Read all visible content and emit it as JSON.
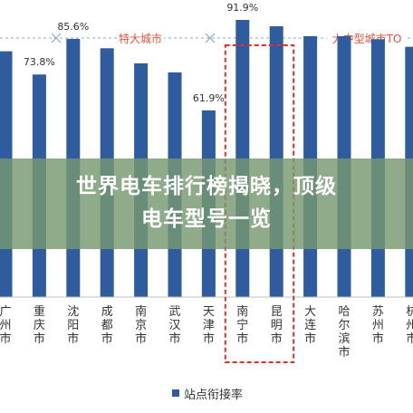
{
  "colors": {
    "bar": "#2E5C9E",
    "region_label": "#E8503A",
    "divider": "#8FA8C8",
    "highlight_box": "#E0302A",
    "banner_text": "#FFFFFF"
  },
  "headline": {
    "line1": "世界电车排行榜揭晓，顶级",
    "line2": "电车型号一览"
  },
  "chart_data": {
    "type": "bar",
    "regions": [
      {
        "label": "市"
      },
      {
        "label": "特大城市"
      },
      {
        "label": "大中型城市TO"
      }
    ],
    "categories": [
      "广州市",
      "重庆市",
      "沈阳市",
      "成都市",
      "南京市",
      "武汉市",
      "天津市",
      "南宁市",
      "昆明市",
      "大连市",
      "哈尔滨市",
      "苏州市",
      "杭州市"
    ],
    "series": [
      {
        "name": "站点衔接率",
        "values": [
          81.5,
          73.8,
          85.6,
          82.5,
          77.5,
          74.5,
          61.9,
          91.9,
          89.8,
          86.5,
          86.5,
          85.5,
          83.0
        ]
      }
    ],
    "data_labels": [
      {
        "category": "重庆市",
        "text": "73.8%"
      },
      {
        "category": "沈阳市",
        "text": "85.6%"
      },
      {
        "category": "天津市",
        "text": "61.9%"
      },
      {
        "category": "南宁市",
        "text": "91.9%"
      }
    ],
    "highlight": [
      "南宁市",
      "昆明市"
    ],
    "ylim": [
      0,
      100
    ],
    "legend": {
      "label": "站点衔接率",
      "position": "bottom-center"
    }
  }
}
